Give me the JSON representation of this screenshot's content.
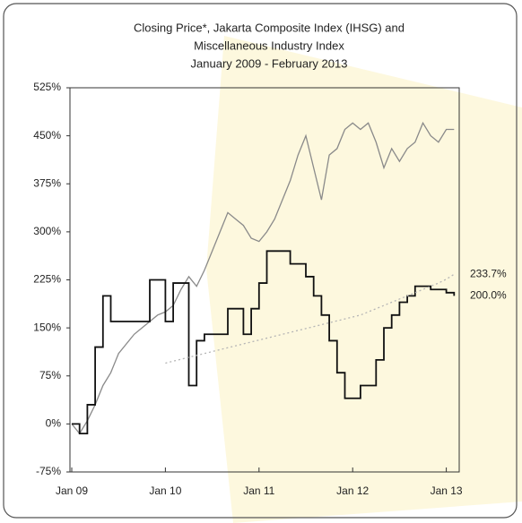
{
  "chart_data": {
    "type": "line",
    "title": "Closing Price*, Jakarta Composite Index (IHSG) and",
    "subtitle": "Miscellaneous Industry Index",
    "period": "January 2009 - February 2013",
    "x": [
      "Jan 09",
      "Feb 09",
      "Mar 09",
      "Apr 09",
      "May 09",
      "Jun 09",
      "Jul 09",
      "Aug 09",
      "Sep 09",
      "Oct 09",
      "Nov 09",
      "Dec 09",
      "Jan 10",
      "Feb 10",
      "Mar 10",
      "Apr 10",
      "May 10",
      "Jun 10",
      "Jul 10",
      "Aug 10",
      "Sep 10",
      "Oct 10",
      "Nov 10",
      "Dec 10",
      "Jan 11",
      "Feb 11",
      "Mar 11",
      "Apr 11",
      "May 11",
      "Jun 11",
      "Jul 11",
      "Aug 11",
      "Sep 11",
      "Oct 11",
      "Nov 11",
      "Dec 11",
      "Jan 12",
      "Feb 12",
      "Mar 12",
      "Apr 12",
      "May 12",
      "Jun 12",
      "Jul 12",
      "Aug 12",
      "Sep 12",
      "Oct 12",
      "Nov 12",
      "Dec 12",
      "Jan 13",
      "Feb 13"
    ],
    "xticks": [
      "Jan 09",
      "Jan 10",
      "Jan 11",
      "Jan 12",
      "Jan 13"
    ],
    "series": [
      {
        "color": "#8a8a8a",
        "style": "line",
        "values": [
          0,
          -15,
          5,
          30,
          60,
          80,
          110,
          125,
          140,
          150,
          160,
          170,
          175,
          185,
          210,
          230,
          215,
          240,
          270,
          300,
          330,
          320,
          310,
          290,
          285,
          300,
          320,
          350,
          380,
          420,
          450,
          400,
          350,
          420,
          430,
          460,
          470,
          460,
          470,
          440,
          400,
          430,
          410,
          430,
          440,
          470,
          450,
          440,
          460,
          460
        ]
      },
      {
        "color": "#111111",
        "style": "step",
        "end_label": "200.0%",
        "values": [
          0,
          -15,
          30,
          120,
          200,
          160,
          160,
          160,
          160,
          160,
          225,
          225,
          160,
          220,
          220,
          60,
          130,
          140,
          140,
          140,
          180,
          180,
          140,
          180,
          220,
          270,
          270,
          270,
          250,
          250,
          230,
          200,
          170,
          130,
          80,
          40,
          40,
          60,
          60,
          100,
          150,
          170,
          190,
          200,
          215,
          215,
          210,
          210,
          205,
          200.0
        ]
      },
      {
        "color": "#b5b5b5",
        "style": "dotted",
        "end_label": "233.7%",
        "values": [
          null,
          null,
          null,
          null,
          null,
          null,
          null,
          null,
          null,
          null,
          null,
          null,
          95,
          98,
          101,
          104,
          107,
          110,
          113,
          116,
          119,
          122,
          125,
          128,
          131,
          134,
          137,
          140,
          143,
          146,
          149,
          152,
          155,
          158,
          161,
          164,
          167,
          170,
          175,
          180,
          185,
          190,
          195,
          200,
          205,
          210,
          215,
          220,
          226,
          233.7
        ]
      }
    ],
    "ylim": [
      -75,
      525
    ],
    "yticks": [
      {
        "value": -75,
        "label": "-75%"
      },
      {
        "value": 0,
        "label": "0%"
      },
      {
        "value": 75,
        "label": "75%"
      },
      {
        "value": 150,
        "label": "150%"
      },
      {
        "value": 225,
        "label": "225%"
      },
      {
        "value": 300,
        "label": "300%"
      },
      {
        "value": 375,
        "label": "375%"
      },
      {
        "value": 450,
        "label": "450%"
      },
      {
        "value": 525,
        "label": "525%"
      }
    ]
  }
}
